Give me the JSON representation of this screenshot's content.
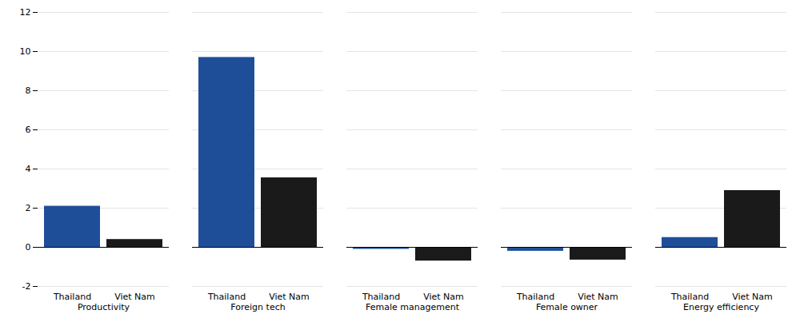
{
  "chart_data": {
    "type": "bar",
    "categories": [
      "Productivity",
      "Foreign tech",
      "Female management",
      "Female owner",
      "Energy efficiency"
    ],
    "series": [
      {
        "name": "Thailand",
        "color": "#1F4E99",
        "values": [
          2.1,
          9.7,
          -0.1,
          -0.2,
          0.5
        ]
      },
      {
        "name": "Viet Nam",
        "color": "#1a1a1a",
        "values": [
          0.4,
          3.55,
          -0.7,
          -0.65,
          2.9
        ]
      }
    ],
    "ylim": [
      -2,
      12
    ],
    "yticks": [
      -2,
      0,
      2,
      4,
      6,
      8,
      10,
      12
    ],
    "grid": true
  }
}
